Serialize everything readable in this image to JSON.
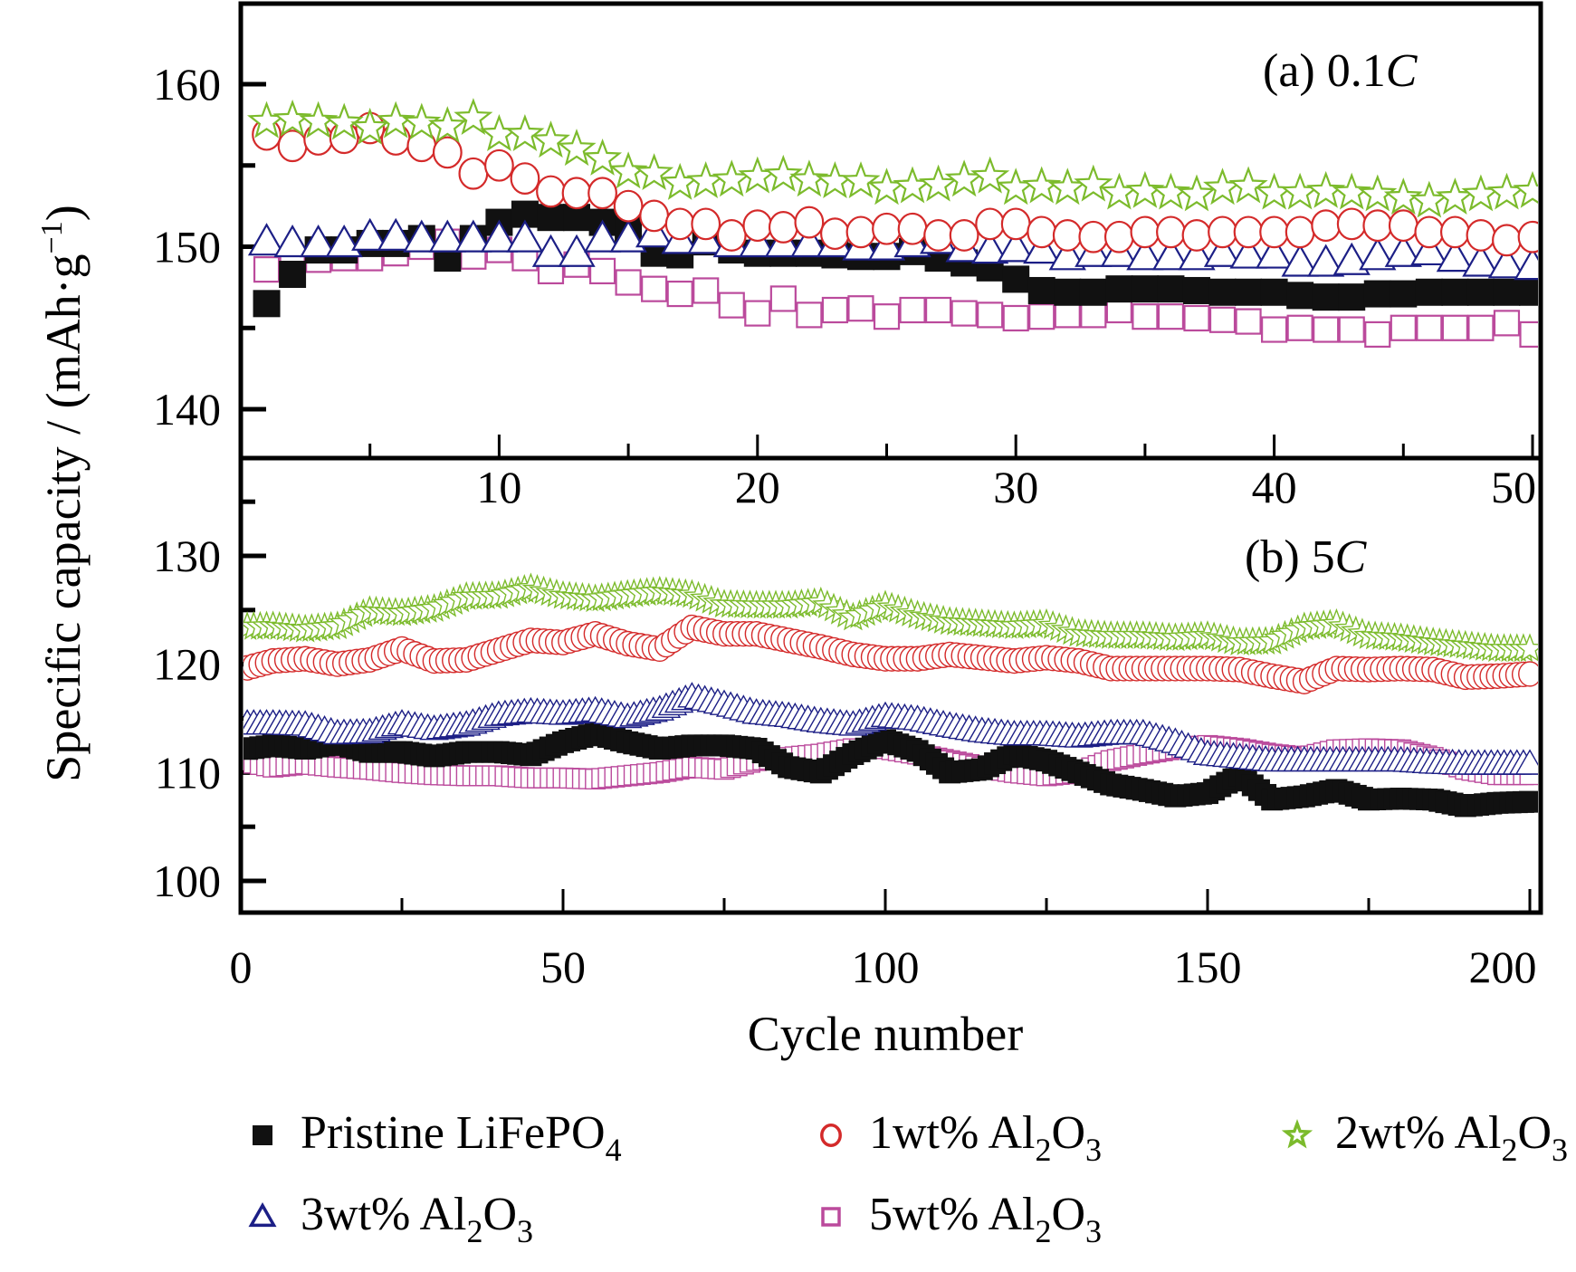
{
  "figure": {
    "ylabel": "Specific capacity / (mAh·g",
    "ylabel_sup": "−1",
    "ylabel_close": ")",
    "xlabel": "Cycle number"
  },
  "legend": {
    "placement": "bottom",
    "items": [
      {
        "key": "pristine",
        "label": "Pristine LiFePO",
        "sub": "4",
        "suffix": "",
        "marker": "filled-square",
        "color": "#111111"
      },
      {
        "key": "wt1",
        "label": "1wt% Al",
        "sub": "2",
        "suffix": "O",
        "sub2": "3",
        "marker": "open-circle",
        "color": "#d42a2a"
      },
      {
        "key": "wt2",
        "label": "2wt% Al",
        "sub": "2",
        "suffix": "O",
        "sub2": "3",
        "marker": "open-star",
        "color": "#7cbb2c"
      },
      {
        "key": "wt3",
        "label": "3wt% Al",
        "sub": "2",
        "suffix": "O",
        "sub2": "3",
        "marker": "open-triangle",
        "color": "#1c1f86"
      },
      {
        "key": "wt5",
        "label": "5wt% Al",
        "sub": "2",
        "suffix": "O",
        "sub2": "3",
        "marker": "open-square",
        "color": "#bb4a9c"
      }
    ]
  },
  "chart_data": [
    {
      "type": "scatter",
      "title": "(a) 0.1C",
      "title_prefix": "(a) 0.1",
      "title_italic": "C",
      "xlabel": "",
      "ylabel": "Specific capacity / (mAh·g⁻¹)",
      "xlim": [
        0,
        50.5
      ],
      "ylim": [
        137,
        165
      ],
      "xticks": [
        10,
        20,
        30,
        40,
        50
      ],
      "xtick_labels": [
        "10",
        "20",
        "30",
        "40",
        "50"
      ],
      "yticks": [
        140,
        150,
        160
      ],
      "ytick_labels": [
        "140",
        "150",
        "160"
      ],
      "grid": false,
      "x": [
        1,
        2,
        3,
        4,
        5,
        6,
        7,
        8,
        9,
        10,
        11,
        12,
        13,
        14,
        15,
        16,
        17,
        18,
        19,
        20,
        21,
        22,
        23,
        24,
        25,
        26,
        27,
        28,
        29,
        30,
        31,
        32,
        33,
        34,
        35,
        36,
        37,
        38,
        39,
        40,
        41,
        42,
        43,
        44,
        45,
        46,
        47,
        48,
        49,
        50
      ],
      "series": [
        {
          "key": "pristine",
          "name": "Pristine LiFePO4",
          "values": [
            146.5,
            148.3,
            149.8,
            149.8,
            150.2,
            150.2,
            150.5,
            149.3,
            150.5,
            151.5,
            152.0,
            151.8,
            151.8,
            151.5,
            151.1,
            149.6,
            149.5,
            150.3,
            149.8,
            149.6,
            149.6,
            149.6,
            149.5,
            149.4,
            149.4,
            149.7,
            149.3,
            149.0,
            148.7,
            148.0,
            147.3,
            147.2,
            147.2,
            147.4,
            147.4,
            147.4,
            147.3,
            147.2,
            147.2,
            147.2,
            147.0,
            146.9,
            146.9,
            147.1,
            147.1,
            147.2,
            147.2,
            147.2,
            147.2,
            147.2
          ]
        },
        {
          "key": "wt1",
          "name": "1wt% Al2O3",
          "values": [
            156.9,
            156.2,
            156.6,
            156.7,
            157.3,
            156.6,
            156.2,
            155.8,
            154.5,
            155.0,
            154.2,
            153.4,
            153.3,
            153.3,
            152.5,
            151.9,
            151.4,
            151.4,
            150.7,
            151.3,
            151.2,
            151.5,
            150.8,
            150.9,
            151.1,
            151.1,
            150.7,
            150.7,
            151.4,
            151.4,
            150.9,
            150.7,
            150.6,
            150.6,
            150.9,
            150.9,
            150.7,
            150.9,
            150.9,
            150.9,
            150.9,
            151.3,
            151.4,
            151.3,
            151.3,
            150.9,
            150.9,
            150.7,
            150.4,
            150.6
          ]
        },
        {
          "key": "wt2",
          "name": "2wt% Al2O3",
          "values": [
            157.7,
            157.8,
            157.7,
            157.6,
            157.3,
            157.7,
            157.6,
            157.4,
            157.9,
            156.9,
            156.9,
            156.5,
            156.0,
            155.4,
            154.6,
            154.5,
            153.9,
            154.0,
            154.1,
            154.3,
            154.4,
            154.1,
            154.0,
            154.0,
            153.6,
            153.7,
            153.8,
            154.1,
            154.3,
            153.6,
            153.7,
            153.6,
            153.8,
            153.3,
            153.4,
            153.3,
            153.2,
            153.6,
            153.7,
            153.3,
            153.3,
            153.4,
            153.3,
            153.2,
            153.0,
            152.8,
            153.0,
            153.2,
            153.3,
            153.4
          ]
        },
        {
          "key": "wt3",
          "name": "3wt% Al2O3",
          "values": [
            150.3,
            150.2,
            150.2,
            150.2,
            150.6,
            150.6,
            150.5,
            150.5,
            150.5,
            150.5,
            150.5,
            149.6,
            149.6,
            150.5,
            150.5,
            150.8,
            150.4,
            150.4,
            150.2,
            150.2,
            150.2,
            150.2,
            150.2,
            150.0,
            150.0,
            150.2,
            150.4,
            149.9,
            149.8,
            149.9,
            149.8,
            149.4,
            149.6,
            149.6,
            149.4,
            149.4,
            149.4,
            149.6,
            149.5,
            149.5,
            149.0,
            149.0,
            149.1,
            149.4,
            149.6,
            149.7,
            149.3,
            149.0,
            148.9,
            148.8
          ]
        },
        {
          "key": "wt5",
          "name": "5wt% Al2O3",
          "values": [
            148.6,
            148.7,
            149.2,
            149.3,
            149.3,
            149.6,
            150.0,
            150.3,
            149.4,
            149.8,
            149.3,
            148.5,
            148.9,
            148.5,
            147.8,
            147.4,
            147.1,
            147.3,
            146.4,
            145.9,
            146.8,
            145.8,
            146.1,
            146.2,
            145.7,
            146.1,
            146.1,
            145.9,
            145.8,
            145.6,
            145.7,
            145.8,
            145.8,
            146.1,
            145.7,
            145.7,
            145.6,
            145.5,
            145.4,
            144.9,
            145.0,
            144.9,
            144.9,
            144.6,
            145.0,
            145.0,
            145.0,
            145.0,
            145.3,
            144.6
          ]
        }
      ]
    },
    {
      "type": "scatter",
      "title": "(b) 5C",
      "title_prefix": "(b) 5",
      "title_italic": "C",
      "xlabel": "Cycle number",
      "ylabel": "Specific capacity / (mAh·g⁻¹)",
      "xlim": [
        0,
        200
      ],
      "ylim": [
        97,
        138
      ],
      "xticks": [
        0,
        50,
        100,
        150,
        200
      ],
      "xtick_labels": [
        "0",
        "50",
        "100",
        "150",
        "200"
      ],
      "yticks": [
        100,
        110,
        120,
        130
      ],
      "ytick_labels": [
        "100",
        "110",
        "120",
        "130"
      ],
      "grid": false,
      "x_sampled_every": 5,
      "x": [
        0,
        5,
        10,
        15,
        20,
        25,
        30,
        35,
        40,
        45,
        50,
        55,
        60,
        65,
        70,
        75,
        80,
        85,
        90,
        95,
        100,
        105,
        110,
        115,
        120,
        125,
        130,
        135,
        140,
        145,
        150,
        155,
        160,
        165,
        170,
        175,
        180,
        185,
        190,
        195,
        200
      ],
      "series": [
        {
          "key": "pristine",
          "name": "Pristine LiFePO4",
          "values": [
            112.1,
            112.5,
            112.2,
            112.7,
            111.9,
            111.9,
            111.5,
            111.9,
            111.9,
            111.6,
            112.8,
            113.6,
            112.8,
            112.2,
            112.5,
            112.5,
            112.2,
            110.5,
            110.0,
            111.7,
            113.0,
            112.0,
            110.0,
            110.3,
            111.7,
            111.1,
            110.0,
            108.9,
            108.4,
            107.8,
            108.1,
            109.7,
            107.5,
            107.8,
            108.4,
            107.5,
            107.6,
            107.5,
            106.9,
            107.2,
            107.3
          ]
        },
        {
          "key": "wt1",
          "name": "1wt% Al2O3",
          "values": [
            119.5,
            120.3,
            120.5,
            120.0,
            120.4,
            121.4,
            120.3,
            120.4,
            121.3,
            122.2,
            122.0,
            122.8,
            121.9,
            121.4,
            123.4,
            122.8,
            122.8,
            122.2,
            121.6,
            120.9,
            120.5,
            120.5,
            120.9,
            120.6,
            120.3,
            120.6,
            120.3,
            119.6,
            119.6,
            119.6,
            119.6,
            119.5,
            118.9,
            118.4,
            119.6,
            119.5,
            119.6,
            119.5,
            118.8,
            118.9,
            119.1
          ]
        },
        {
          "key": "wt2",
          "name": "2wt% Al2O3",
          "values": [
            123.4,
            123.5,
            123.2,
            123.5,
            124.9,
            124.7,
            125.1,
            126.2,
            126.3,
            127.0,
            126.3,
            126.0,
            126.4,
            126.7,
            126.4,
            125.5,
            125.4,
            125.4,
            125.7,
            124.3,
            125.4,
            124.5,
            123.9,
            123.7,
            123.5,
            123.7,
            122.8,
            122.6,
            122.6,
            122.4,
            122.6,
            122.0,
            122.1,
            123.4,
            123.7,
            122.6,
            122.4,
            122.0,
            121.7,
            121.4,
            121.4
          ]
        },
        {
          "key": "wt3",
          "name": "3wt% Al2O3",
          "values": [
            114.5,
            114.5,
            114.4,
            113.6,
            113.7,
            114.5,
            114.0,
            114.4,
            115.3,
            115.6,
            115.4,
            115.7,
            115.1,
            115.8,
            117.0,
            116.3,
            115.5,
            115.2,
            114.7,
            114.4,
            115.2,
            114.9,
            114.3,
            113.8,
            113.5,
            113.5,
            113.3,
            113.6,
            113.6,
            112.8,
            111.7,
            111.4,
            111.1,
            111.1,
            111.1,
            111.1,
            111.1,
            110.9,
            110.8,
            110.8,
            110.8
          ]
        },
        {
          "key": "wt5",
          "name": "5wt% Al2O3",
          "values": [
            111.1,
            110.5,
            110.8,
            110.5,
            110.3,
            110.0,
            109.8,
            109.7,
            109.7,
            109.5,
            109.5,
            109.4,
            109.7,
            110.0,
            110.5,
            110.3,
            111.1,
            111.4,
            111.7,
            112.2,
            112.2,
            111.7,
            111.1,
            110.5,
            110.0,
            109.7,
            110.0,
            111.1,
            111.7,
            112.2,
            112.5,
            112.2,
            111.7,
            111.4,
            112.1,
            112.2,
            112.1,
            111.4,
            110.3,
            109.8,
            109.8
          ]
        }
      ]
    }
  ]
}
